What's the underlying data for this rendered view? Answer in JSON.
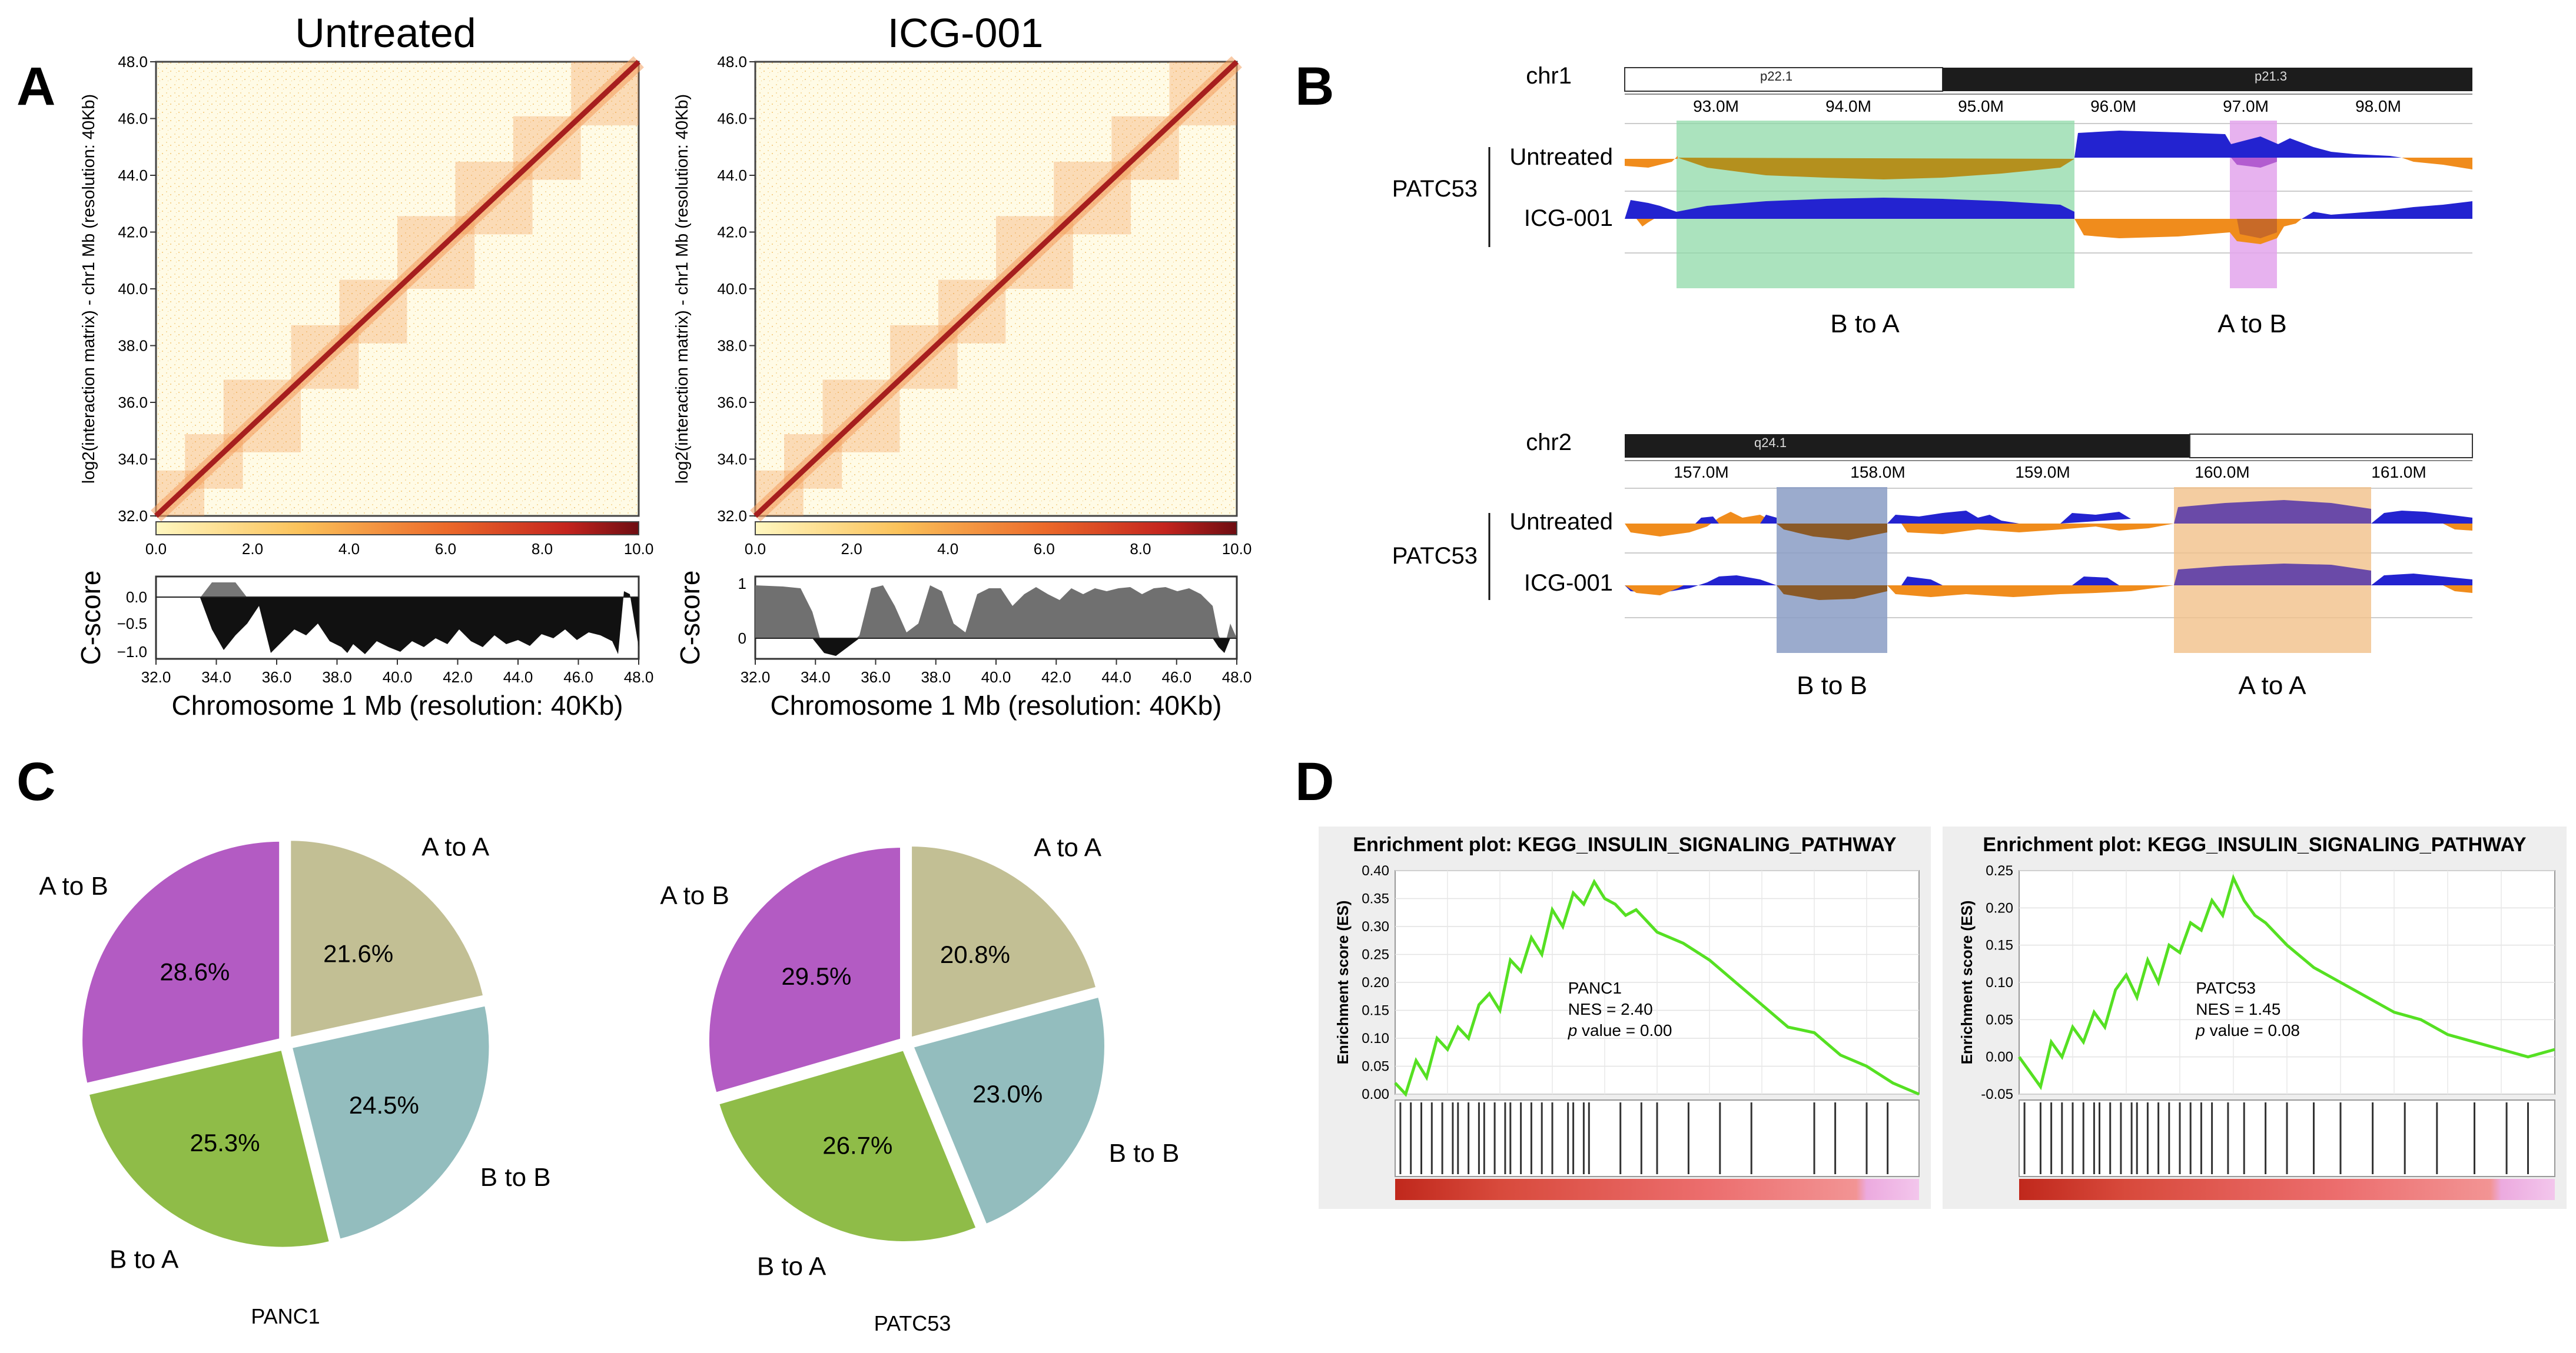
{
  "panel_labels": {
    "A": "A",
    "B": "B",
    "C": "C",
    "D": "D"
  },
  "panelA": {
    "hic_ylabel": "log2(interaction matrix) - chr1 Mb (resolution: 40Kb)",
    "cscore_ylabel": "C-score",
    "xlabel": "Chromosome 1 Mb (resolution: 40Kb)",
    "colorbar_ticks": [
      "0.0",
      "2.0",
      "4.0",
      "6.0",
      "8.0",
      "10.0"
    ],
    "axis_ticks": [
      "32.0",
      "34.0",
      "36.0",
      "38.0",
      "40.0",
      "42.0",
      "44.0",
      "46.0",
      "48.0"
    ],
    "colors": {
      "diag": "#a61e1e",
      "mid": "#f08a3a",
      "light": "#fff7d6"
    },
    "left": {
      "title": "Untreated",
      "cscore_ticks": [
        "0.0",
        "−0.5",
        "−1.0"
      ]
    },
    "right": {
      "title": "ICG-001",
      "cscore_ticks": [
        "1",
        "0"
      ]
    }
  },
  "panelB": {
    "group": "PATC53",
    "track1": "Untreated",
    "track2": "ICG-001",
    "colors": {
      "A": "#2323d0",
      "B": "#f08c1c",
      "green": "#8fd9a8",
      "violet": "#e3a5ec",
      "slate": "#8a9cc4",
      "peach": "#f1c08a"
    },
    "chr1": {
      "name": "chr1",
      "band1": "p22.1",
      "band2": "p21.3",
      "ticks": [
        "93.0M",
        "94.0M",
        "95.0M",
        "96.0M",
        "97.0M",
        "98.0M"
      ],
      "hl1": "B to A",
      "hl2": "A to B"
    },
    "chr2": {
      "name": "chr2",
      "band1": "q24.1",
      "ticks": [
        "157.0M",
        "158.0M",
        "159.0M",
        "160.0M",
        "161.0M"
      ],
      "hl1": "B to B",
      "hl2": "A to A"
    }
  },
  "chart_data": [
    {
      "type": "pie",
      "title": "PANC1",
      "categories": [
        "A to A",
        "B to B",
        "B to A",
        "A to B"
      ],
      "values": [
        21.6,
        24.5,
        25.3,
        28.6
      ],
      "value_labels": [
        "21.6%",
        "24.5%",
        "25.3%",
        "28.6%"
      ],
      "colors": [
        "#c2bf94",
        "#93bdbe",
        "#8fbc48",
        "#b35bc3"
      ]
    },
    {
      "type": "pie",
      "title": "PATC53",
      "categories": [
        "A to A",
        "B to B",
        "B to A",
        "A to B"
      ],
      "values": [
        20.8,
        23.0,
        26.7,
        29.5
      ],
      "value_labels": [
        "20.8%",
        "23.0%",
        "26.7%",
        "29.5%"
      ],
      "colors": [
        "#c2bf94",
        "#93bdbe",
        "#8fbc48",
        "#b35bc3"
      ]
    },
    {
      "type": "line",
      "title": "Enrichment plot: KEGG_INSULIN_SIGNALING_PATHWAY",
      "ylabel": "Enrichment score (ES)",
      "ylim": [
        0,
        0.4
      ],
      "yticks": [
        "0.00",
        "0.05",
        "0.10",
        "0.15",
        "0.20",
        "0.25",
        "0.30",
        "0.35",
        "0.40"
      ],
      "annotation": {
        "name": "PANC1",
        "nes": "NES = 2.40",
        "p_label": "p",
        "p_rest": " value = 0.00"
      },
      "x": [
        0,
        0.02,
        0.04,
        0.06,
        0.08,
        0.1,
        0.12,
        0.14,
        0.16,
        0.18,
        0.2,
        0.22,
        0.24,
        0.26,
        0.28,
        0.3,
        0.32,
        0.34,
        0.36,
        0.38,
        0.4,
        0.42,
        0.44,
        0.46,
        0.5,
        0.55,
        0.6,
        0.65,
        0.7,
        0.75,
        0.8,
        0.85,
        0.9,
        0.95,
        1.0
      ],
      "y": [
        0.02,
        0.0,
        0.06,
        0.03,
        0.1,
        0.08,
        0.12,
        0.1,
        0.16,
        0.18,
        0.15,
        0.24,
        0.22,
        0.28,
        0.25,
        0.33,
        0.3,
        0.36,
        0.34,
        0.38,
        0.35,
        0.34,
        0.32,
        0.33,
        0.29,
        0.27,
        0.24,
        0.2,
        0.16,
        0.12,
        0.11,
        0.07,
        0.05,
        0.02,
        0.0
      ],
      "hits": [
        0.01,
        0.03,
        0.05,
        0.07,
        0.09,
        0.11,
        0.12,
        0.14,
        0.16,
        0.17,
        0.19,
        0.21,
        0.22,
        0.24,
        0.26,
        0.28,
        0.3,
        0.33,
        0.34,
        0.36,
        0.37,
        0.43,
        0.47,
        0.5,
        0.56,
        0.62,
        0.68,
        0.8,
        0.84,
        0.9,
        0.94
      ]
    },
    {
      "type": "line",
      "title": "Enrichment plot: KEGG_INSULIN_SIGNALING_PATHWAY",
      "ylabel": "Enrichment score (ES)",
      "ylim": [
        -0.05,
        0.25
      ],
      "yticks": [
        "-0.05",
        "0.00",
        "0.05",
        "0.10",
        "0.15",
        "0.20",
        "0.25"
      ],
      "annotation": {
        "name": "PATC53",
        "nes": "NES = 1.45",
        "p_label": "p",
        "p_rest": " value = 0.08"
      },
      "x": [
        0,
        0.02,
        0.04,
        0.06,
        0.08,
        0.1,
        0.12,
        0.14,
        0.16,
        0.18,
        0.2,
        0.22,
        0.24,
        0.26,
        0.28,
        0.3,
        0.32,
        0.34,
        0.36,
        0.38,
        0.4,
        0.42,
        0.44,
        0.46,
        0.5,
        0.55,
        0.6,
        0.65,
        0.7,
        0.75,
        0.8,
        0.85,
        0.9,
        0.95,
        1.0
      ],
      "y": [
        0.0,
        -0.02,
        -0.04,
        0.02,
        0.0,
        0.04,
        0.02,
        0.06,
        0.04,
        0.09,
        0.11,
        0.08,
        0.13,
        0.1,
        0.15,
        0.14,
        0.18,
        0.17,
        0.21,
        0.19,
        0.24,
        0.21,
        0.19,
        0.18,
        0.15,
        0.12,
        0.1,
        0.08,
        0.06,
        0.05,
        0.03,
        0.02,
        0.01,
        0.0,
        0.01
      ],
      "hits": [
        0.01,
        0.04,
        0.06,
        0.08,
        0.1,
        0.12,
        0.14,
        0.15,
        0.17,
        0.19,
        0.21,
        0.22,
        0.24,
        0.26,
        0.28,
        0.3,
        0.32,
        0.34,
        0.36,
        0.39,
        0.42,
        0.46,
        0.5,
        0.55,
        0.6,
        0.66,
        0.72,
        0.78,
        0.85,
        0.91,
        0.95
      ]
    }
  ]
}
